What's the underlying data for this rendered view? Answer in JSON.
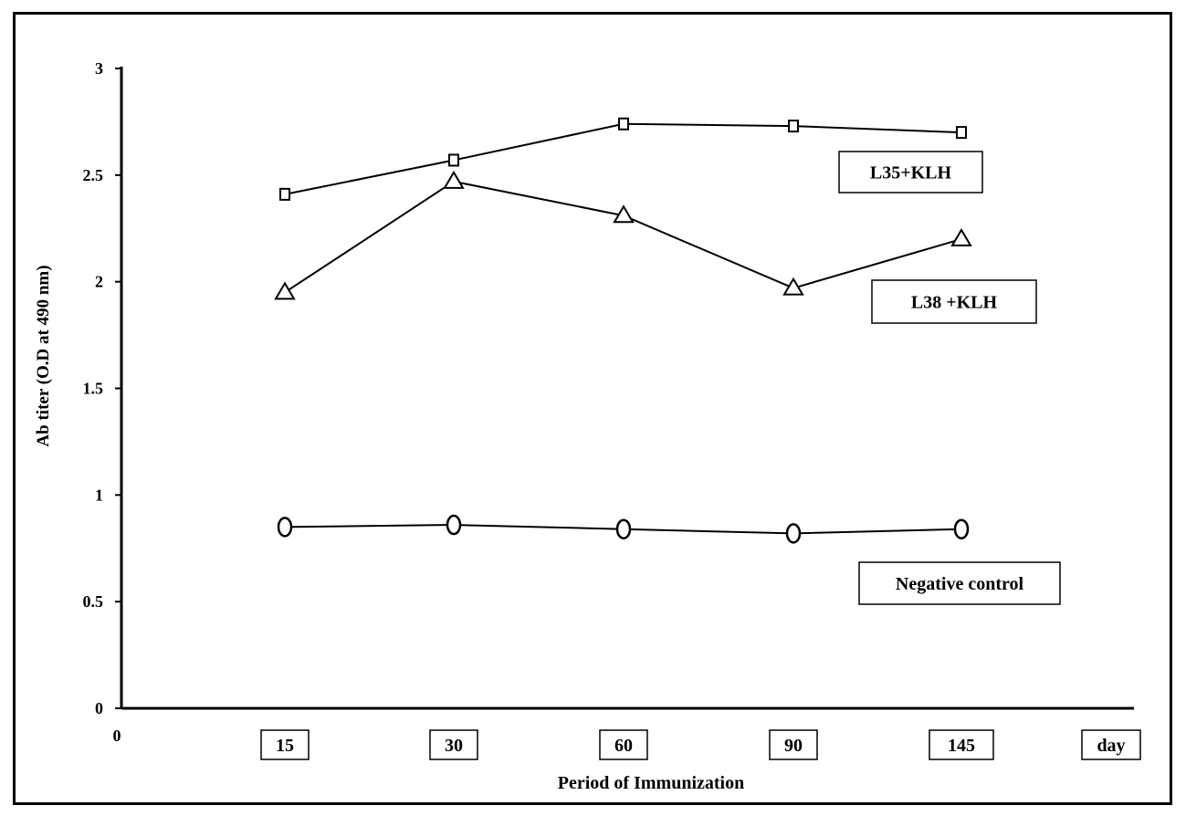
{
  "chart_data": {
    "type": "line",
    "title": "",
    "xlabel": "Period of Immunization",
    "ylabel": "Ab titer (O.D at 490 nm)",
    "x_origin_label": "0",
    "x_unit_label": "day",
    "categories": [
      "15",
      "30",
      "60",
      "90",
      "145"
    ],
    "ylim": [
      0,
      3
    ],
    "yticks": [
      "0",
      "0.5",
      "1",
      "1.5",
      "2",
      "2.5",
      "3"
    ],
    "grid": false,
    "series": [
      {
        "name": "L35+KLH",
        "marker": "square",
        "values": [
          2.41,
          2.57,
          2.74,
          2.73,
          2.7
        ]
      },
      {
        "name": "L38 +KLH",
        "marker": "triangle",
        "values": [
          1.95,
          2.47,
          2.31,
          1.97,
          2.2
        ]
      },
      {
        "name": "Negative control",
        "marker": "circle",
        "values": [
          0.85,
          0.86,
          0.84,
          0.82,
          0.84
        ]
      }
    ],
    "colors": {
      "line": "#000000",
      "background": "#ffffff"
    }
  }
}
